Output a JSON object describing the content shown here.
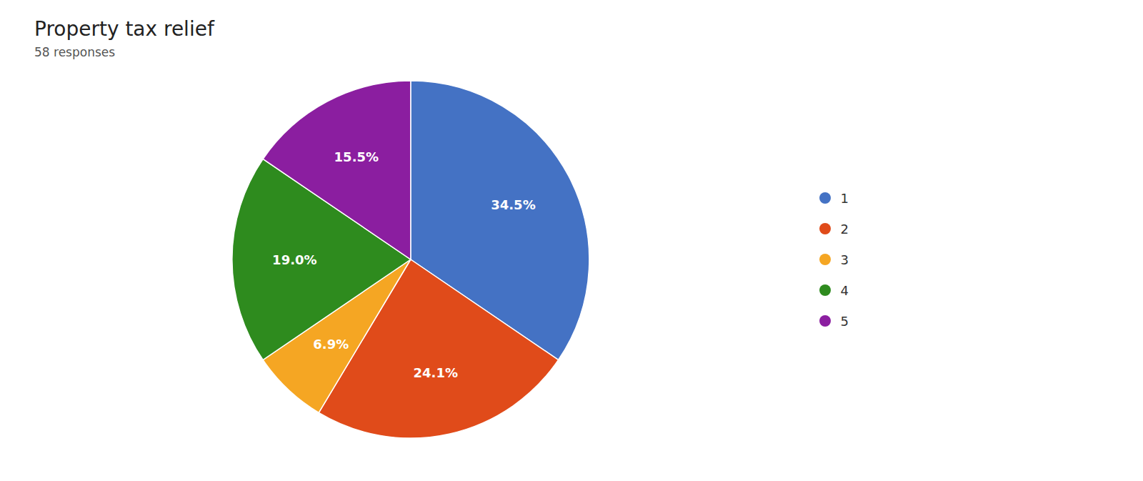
{
  "chart_data": {
    "type": "pie",
    "title": "Property tax relief",
    "subtitle": "58 responses",
    "categories": [
      "1",
      "2",
      "3",
      "4",
      "5"
    ],
    "values": [
      34.5,
      24.1,
      6.9,
      19.0,
      15.5
    ],
    "value_labels": [
      "34.5%",
      "24.1%",
      "6.9%",
      "19.0%",
      "15.5%"
    ],
    "colors": [
      "#4472C4",
      "#E04B1A",
      "#F5A623",
      "#2E8B1E",
      "#8B1EA0"
    ],
    "data_labels": true,
    "legend": "right"
  }
}
